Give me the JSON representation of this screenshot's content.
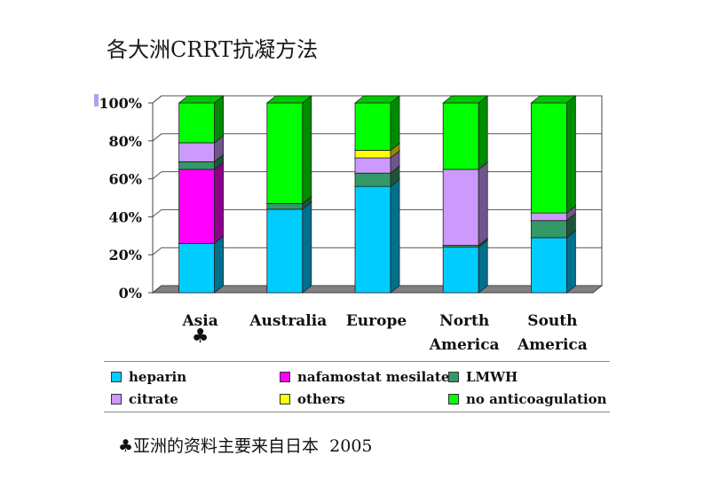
{
  "slide": {
    "title": "各大洲CRRT抗凝方法",
    "footnote_symbol": "♣",
    "footnote_text": "亚洲的资料主要来自日本",
    "footnote_year": "2005"
  },
  "chart_data": {
    "type": "bar",
    "stacked": true,
    "three_d": true,
    "categories": [
      [
        "Asia"
      ],
      [
        "Australia"
      ],
      [
        "Europe"
      ],
      [
        "North",
        "America"
      ],
      [
        "South",
        "America"
      ]
    ],
    "category_marks": [
      "♣",
      "",
      "",
      "",
      ""
    ],
    "yticks": [
      "0%",
      "20%",
      "40%",
      "60%",
      "80%",
      "100%"
    ],
    "ylim": [
      0,
      100
    ],
    "grid": true,
    "legend_position": "bottom",
    "series": [
      {
        "name": "heparin",
        "color": "#00ccff",
        "values": [
          26,
          44,
          56,
          24,
          29
        ]
      },
      {
        "name": "nafamostat mesilate",
        "color": "#ff00ff",
        "values": [
          39,
          0,
          0,
          0,
          0
        ]
      },
      {
        "name": "LMWH",
        "color": "#339966",
        "values": [
          4,
          3,
          7,
          1,
          9
        ]
      },
      {
        "name": "citrate",
        "color": "#cc99ff",
        "values": [
          10,
          0,
          8,
          40,
          4
        ]
      },
      {
        "name": "others",
        "color": "#ffff00",
        "values": [
          0,
          0,
          4,
          0,
          0
        ]
      },
      {
        "name": "no anticoagulation",
        "color": "#00ff00",
        "values": [
          21,
          53,
          25,
          35,
          58
        ]
      }
    ]
  }
}
